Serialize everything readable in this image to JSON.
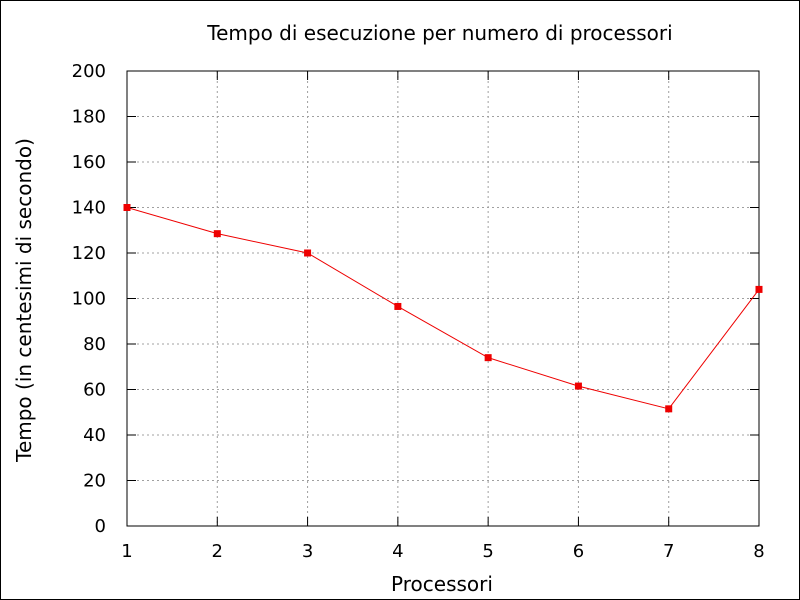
{
  "chart_data": {
    "type": "line",
    "title": "Tempo di esecuzione per numero di processori",
    "xlabel": "Processori",
    "ylabel": "Tempo (in centesimi di secondo)",
    "xlim": [
      1,
      8
    ],
    "ylim": [
      0,
      200
    ],
    "xticks": [
      1,
      2,
      3,
      4,
      5,
      6,
      7,
      8
    ],
    "yticks": [
      0,
      20,
      40,
      60,
      80,
      100,
      120,
      140,
      160,
      180,
      200
    ],
    "grid": true,
    "legend": "none",
    "series": [
      {
        "color": "#ee0000",
        "marker": "square",
        "x": [
          1,
          2,
          3,
          4,
          5,
          6,
          7,
          8
        ],
        "y": [
          140,
          128.5,
          120,
          96.5,
          74,
          61.5,
          51.5,
          104
        ]
      }
    ]
  }
}
